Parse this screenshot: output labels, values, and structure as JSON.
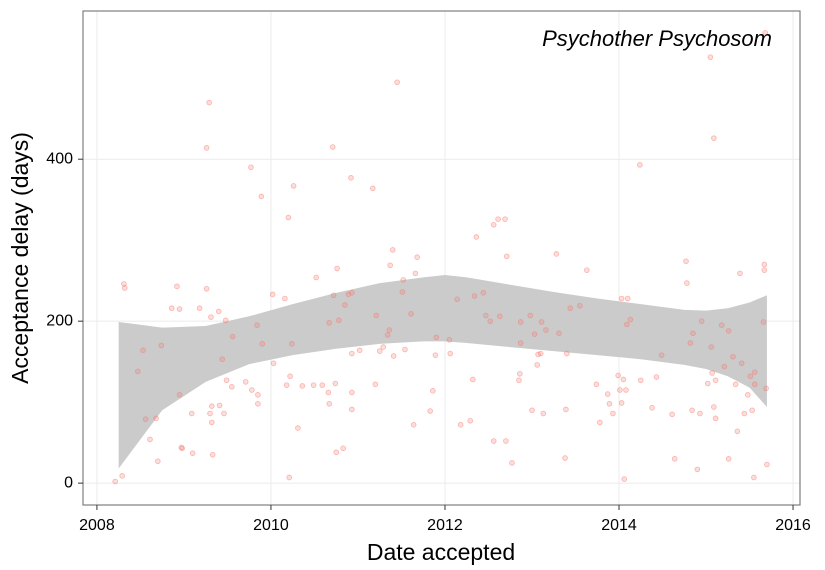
{
  "chart_data": {
    "type": "scatter",
    "annotation": "Psychother Psychosom",
    "x_label": "Date accepted",
    "y_label": "Acceptance delay (days)",
    "xlim": [
      2007.84,
      2016.08
    ],
    "ylim": [
      -27,
      583
    ],
    "xticks": [
      2008,
      2010,
      2012,
      2014,
      2016
    ],
    "yticks": [
      0,
      200,
      400
    ],
    "grid": true,
    "color": "#F8766D",
    "x": [
      2008.21,
      2008.29,
      2008.31,
      2008.32,
      2008.47,
      2008.53,
      2008.56,
      2008.61,
      2008.68,
      2008.7,
      2008.74,
      2008.86,
      2008.92,
      2008.95,
      2008.95,
      2008.97,
      2008.98,
      2009.09,
      2009.1,
      2009.18,
      2009.26,
      2009.26,
      2009.29,
      2009.3,
      2009.31,
      2009.32,
      2009.32,
      2009.33,
      2009.4,
      2009.41,
      2009.44,
      2009.46,
      2009.48,
      2009.49,
      2009.55,
      2009.56,
      2009.71,
      2009.77,
      2009.78,
      2009.84,
      2009.85,
      2009.85,
      2009.89,
      2009.9,
      2010.02,
      2010.03,
      2010.16,
      2010.18,
      2010.2,
      2010.21,
      2010.22,
      2010.24,
      2010.26,
      2010.31,
      2010.36,
      2010.49,
      2010.52,
      2010.59,
      2010.66,
      2010.67,
      2010.67,
      2010.71,
      2010.72,
      2010.74,
      2010.75,
      2010.76,
      2010.78,
      2010.83,
      2010.85,
      2010.89,
      2010.92,
      2010.93,
      2010.93,
      2010.93,
      2010.93,
      2011.02,
      2011.17,
      2011.2,
      2011.21,
      2011.25,
      2011.29,
      2011.34,
      2011.36,
      2011.37,
      2011.4,
      2011.41,
      2011.45,
      2011.51,
      2011.52,
      2011.54,
      2011.61,
      2011.64,
      2011.66,
      2011.68,
      2011.83,
      2011.86,
      2011.89,
      2011.9,
      2012.05,
      2012.06,
      2012.14,
      2012.18,
      2012.29,
      2012.32,
      2012.34,
      2012.36,
      2012.44,
      2012.47,
      2012.52,
      2012.56,
      2012.56,
      2012.61,
      2012.63,
      2012.69,
      2012.7,
      2012.71,
      2012.77,
      2012.85,
      2012.86,
      2012.87,
      2012.87,
      2012.98,
      2013.0,
      2013.03,
      2013.06,
      2013.07,
      2013.1,
      2013.11,
      2013.13,
      2013.16,
      2013.28,
      2013.31,
      2013.38,
      2013.39,
      2013.4,
      2013.44,
      2013.55,
      2013.63,
      2013.74,
      2013.78,
      2013.87,
      2013.89,
      2013.93,
      2013.99,
      2014.01,
      2014.03,
      2014.03,
      2014.05,
      2014.06,
      2014.08,
      2014.09,
      2014.1,
      2014.13,
      2014.24,
      2014.25,
      2014.38,
      2014.43,
      2014.49,
      2014.61,
      2014.64,
      2014.77,
      2014.78,
      2014.82,
      2014.84,
      2014.85,
      2014.9,
      2014.93,
      2014.95,
      2015.02,
      2015.05,
      2015.06,
      2015.07,
      2015.09,
      2015.09,
      2015.11,
      2015.11,
      2015.18,
      2015.21,
      2015.26,
      2015.26,
      2015.31,
      2015.34,
      2015.36,
      2015.39,
      2015.41,
      2015.44,
      2015.48,
      2015.51,
      2015.53,
      2015.55,
      2015.56,
      2015.56,
      2015.66,
      2015.67,
      2015.67,
      2015.69,
      2015.7,
      2015.68
    ],
    "values": [
      2,
      9,
      246,
      241,
      138,
      164,
      79,
      54,
      80,
      27,
      170,
      216,
      243,
      215,
      109,
      44,
      43,
      86,
      37,
      216,
      240,
      414,
      470,
      86,
      205,
      95,
      75,
      35,
      212,
      96,
      153,
      86,
      201,
      127,
      119,
      181,
      125,
      390,
      115,
      195,
      109,
      98,
      354,
      172,
      233,
      148,
      228,
      121,
      328,
      7,
      132,
      172,
      367,
      68,
      120,
      121,
      254,
      121,
      112,
      98,
      198,
      415,
      232,
      123,
      38,
      265,
      201,
      43,
      220,
      233,
      377,
      235,
      160,
      91,
      112,
      164,
      364,
      122,
      207,
      163,
      168,
      183,
      189,
      269,
      288,
      157,
      495,
      236,
      251,
      165,
      209,
      72,
      259,
      279,
      89,
      114,
      158,
      180,
      177,
      160,
      227,
      72,
      77,
      128,
      231,
      304,
      235,
      207,
      200,
      319,
      52,
      326,
      206,
      326,
      52,
      280,
      25,
      127,
      135,
      173,
      199,
      207,
      90,
      184,
      146,
      159,
      160,
      199,
      86,
      189,
      283,
      185,
      31,
      91,
      160,
      216,
      219,
      263,
      122,
      75,
      110,
      98,
      86,
      133,
      115,
      228,
      99,
      128,
      5,
      115,
      196,
      228,
      202,
      393,
      127,
      93,
      131,
      158,
      85,
      30,
      274,
      247,
      173,
      90,
      185,
      17,
      86,
      200,
      123,
      526,
      168,
      136,
      94,
      426,
      127,
      80,
      195,
      144,
      188,
      30,
      156,
      122,
      64,
      259,
      148,
      86,
      109,
      132,
      90,
      7,
      122,
      137,
      199,
      263,
      270,
      117,
      23,
      556
    ],
    "ribbon": {
      "color": "#cbcbcb",
      "x": [
        2008.25,
        2008.75,
        2009.25,
        2009.75,
        2010.25,
        2010.75,
        2011.25,
        2011.75,
        2012.0,
        2012.25,
        2012.75,
        2013.25,
        2013.75,
        2014.25,
        2014.75,
        2015.0,
        2015.25,
        2015.5,
        2015.7
      ],
      "upper": [
        199,
        192,
        194,
        206,
        221,
        235,
        247,
        254,
        257,
        254,
        245,
        236,
        228,
        221,
        214,
        213,
        216,
        223,
        232
      ],
      "lower": [
        18,
        90,
        125,
        147,
        158,
        166,
        172,
        175,
        175,
        173,
        168,
        163,
        158,
        153,
        146,
        141,
        132,
        118,
        94
      ]
    }
  }
}
